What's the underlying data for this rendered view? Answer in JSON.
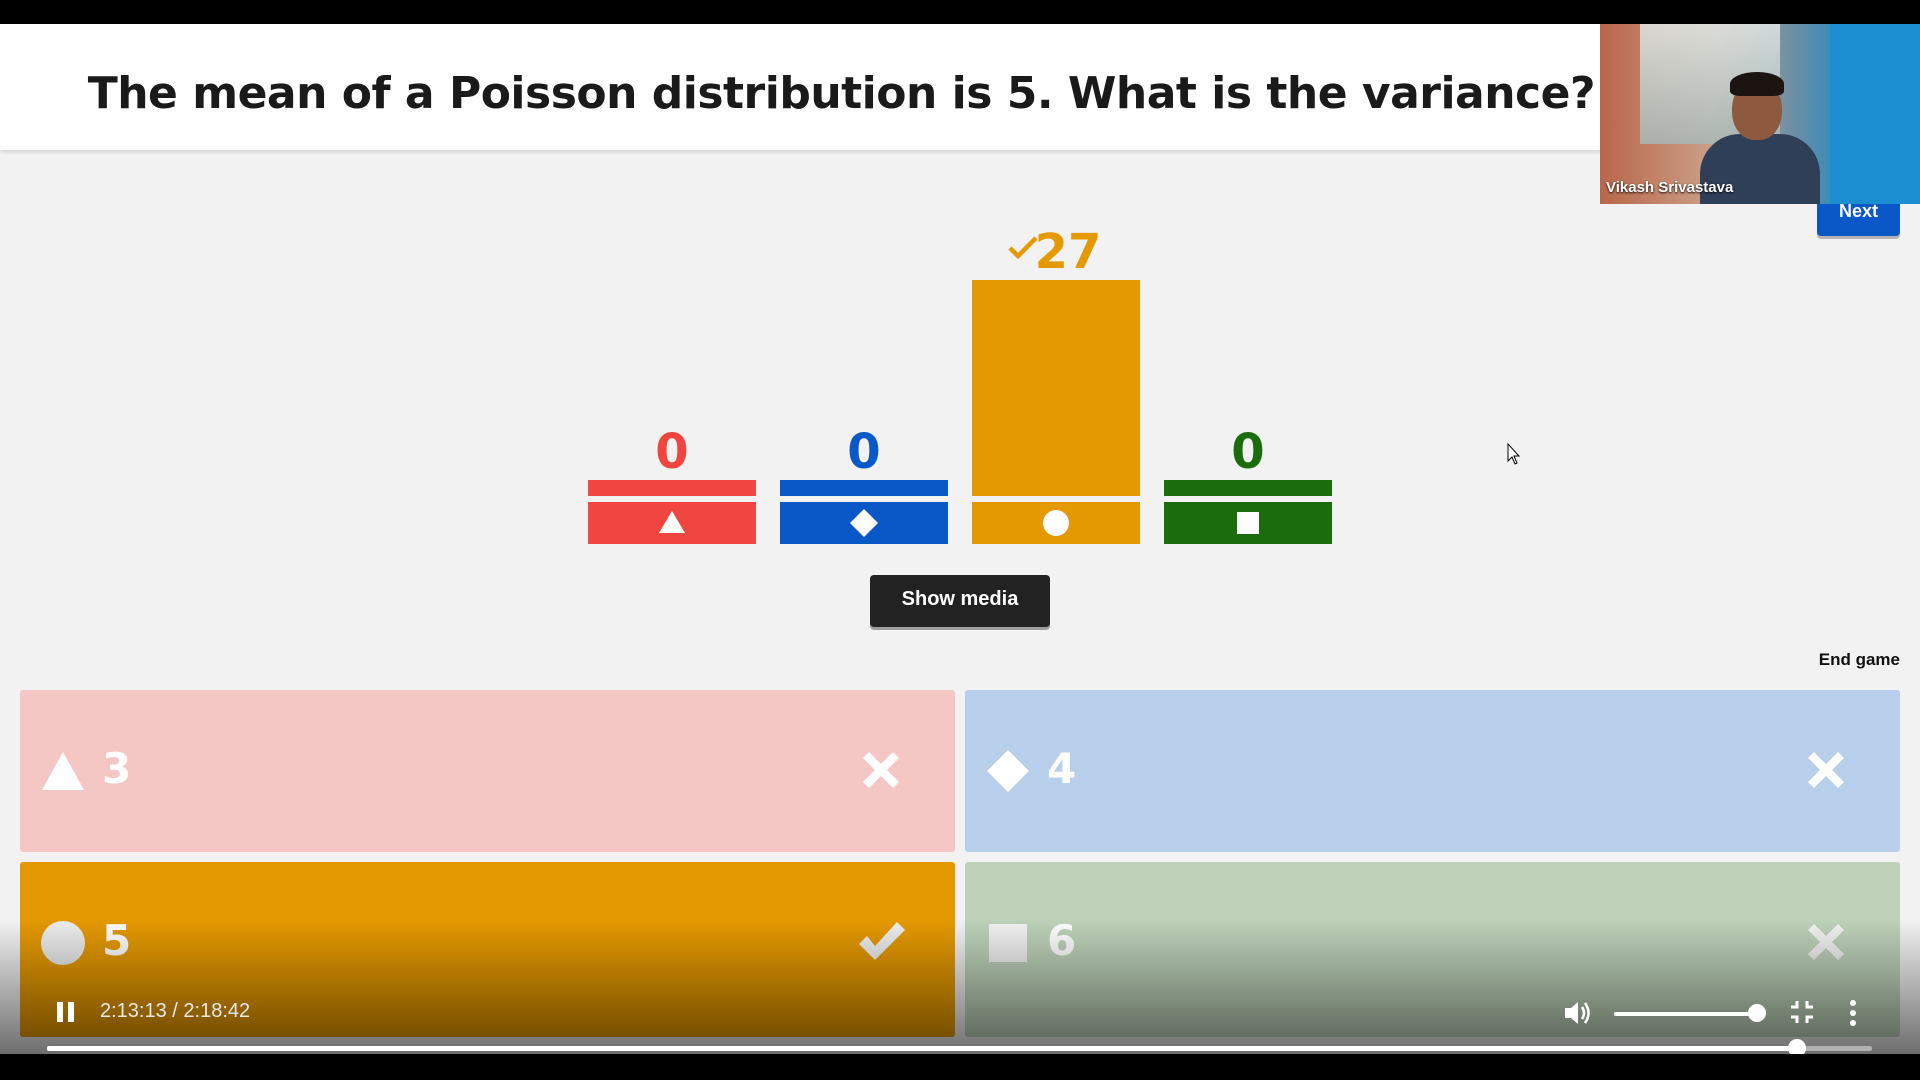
{
  "question": "The mean of a Poisson distribution is 5. What is the variance?",
  "webcam": {
    "name": "Vikash Srivastava"
  },
  "next_label": "Next",
  "show_media_label": "Show media",
  "end_game_label": "End game",
  "chart_data": {
    "type": "bar",
    "categories": [
      "triangle",
      "diamond",
      "circle",
      "square"
    ],
    "values": [
      0,
      0,
      27,
      0
    ],
    "colors": [
      "#f0463f",
      "#0a57c7",
      "#e59900",
      "#1a6d0a"
    ],
    "correct": [
      false,
      false,
      true,
      false
    ],
    "ymax": 27
  },
  "answers": [
    {
      "shape": "triangle-icon",
      "label": "3",
      "correct": false,
      "color": "#f5c7c4"
    },
    {
      "shape": "diamond-icon",
      "label": "4",
      "correct": false,
      "color": "#b8cfec"
    },
    {
      "shape": "circle-icon",
      "label": "5",
      "correct": true,
      "color": "#e59900"
    },
    {
      "shape": "square-icon",
      "label": "6",
      "correct": false,
      "color": "#bdd2b9"
    }
  ],
  "player": {
    "time": "2:13:13 / 2:18:42",
    "progress": 0.959,
    "volume": 1.0
  }
}
